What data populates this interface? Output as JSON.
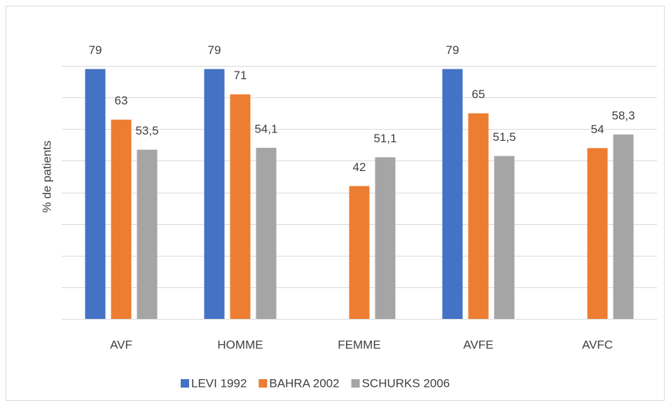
{
  "chart_data": {
    "type": "bar",
    "ylabel": "% de patients",
    "categories": [
      "AVF",
      "HOMME",
      "FEMME",
      "AVFE",
      "AVFC"
    ],
    "series": [
      {
        "name": "LEVI 1992",
        "color": "#4472c4",
        "values": [
          79,
          79,
          null,
          79,
          null
        ]
      },
      {
        "name": "BAHRA 2002",
        "color": "#ed7d31",
        "values": [
          63,
          71,
          42,
          65,
          54
        ]
      },
      {
        "name": "SCHURKS 2006",
        "color": "#a5a5a5",
        "values": [
          53.5,
          54.1,
          51.1,
          51.5,
          58.3
        ],
        "value_labels": [
          "53,5",
          "54,1",
          "51,1",
          "51,5",
          "58,3"
        ]
      }
    ],
    "ylim": [
      0,
      80
    ],
    "yticks": [
      0,
      10,
      20,
      30,
      40,
      50,
      60,
      70,
      80
    ],
    "grid": true,
    "legend": "bottom"
  }
}
